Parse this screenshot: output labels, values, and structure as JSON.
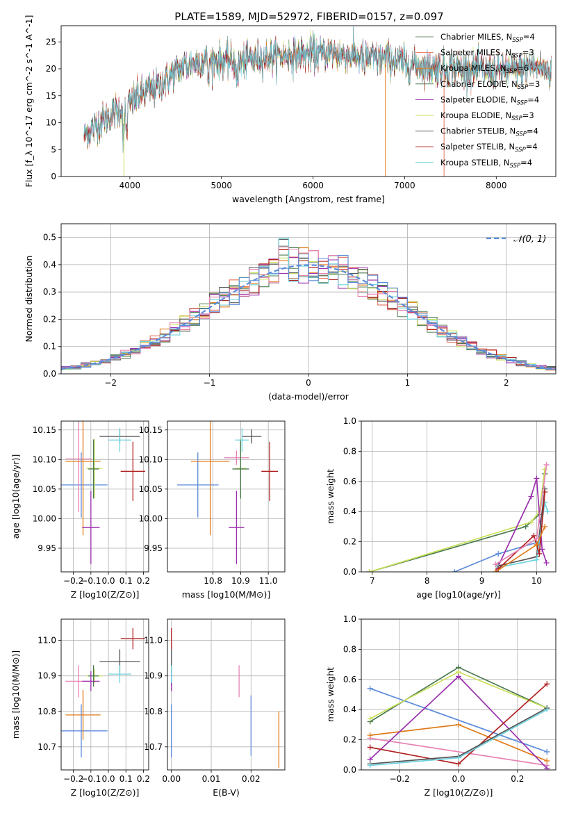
{
  "figure": {
    "title": "PLATE=1589, MJD=52972, FIBERID=0157, z=0.097"
  },
  "series_colors": [
    "#1f77b4"
  ],
  "chart_data": [
    {
      "id": "spectrum",
      "type": "line",
      "title": "PLATE=1589, MJD=52972, FIBERID=0157, z=0.097",
      "xlabel": "wavelength [Angstrom, rest frame]",
      "ylabel": "Flux [f_λ 10^-17 erg cm^-2 s^-1 A^-1]",
      "xlim": [
        3250,
        8650
      ],
      "ylim": [
        0,
        28
      ],
      "xticks": [
        4000,
        5000,
        6000,
        7000,
        8000
      ],
      "yticks": [
        0,
        5,
        10,
        15,
        20,
        25
      ],
      "grid": false,
      "legend_position": "top-right",
      "continuum_points": [
        [
          3500,
          7.5
        ],
        [
          3600,
          9.0
        ],
        [
          3700,
          10.5
        ],
        [
          3800,
          11.5
        ],
        [
          3900,
          12.5
        ],
        [
          4000,
          13.5
        ],
        [
          4100,
          15.0
        ],
        [
          4200,
          16.0
        ],
        [
          4300,
          16.5
        ],
        [
          4400,
          18.0
        ],
        [
          4500,
          19.5
        ],
        [
          4600,
          20.5
        ],
        [
          4700,
          21.0
        ],
        [
          4800,
          21.5
        ],
        [
          4900,
          21.5
        ],
        [
          5000,
          21.5
        ],
        [
          5100,
          21.5
        ],
        [
          5200,
          21.0
        ],
        [
          5300,
          21.8
        ],
        [
          5400,
          22.0
        ],
        [
          5600,
          22.3
        ],
        [
          5800,
          22.5
        ],
        [
          6000,
          22.8
        ],
        [
          6200,
          22.8
        ],
        [
          6400,
          22.5
        ],
        [
          6600,
          22.0
        ],
        [
          6800,
          21.8
        ],
        [
          7000,
          21.0
        ],
        [
          7200,
          20.5
        ],
        [
          7400,
          20.0
        ],
        [
          7600,
          20.2
        ],
        [
          7800,
          19.8
        ],
        [
          8000,
          19.5
        ],
        [
          8200,
          19.8
        ],
        [
          8400,
          20.5
        ],
        [
          8600,
          19.5
        ]
      ],
      "series": [
        {
          "name": "Chabrier MILES, N_SSP=4",
          "color": "#6b8e6b"
        },
        {
          "name": "Salpeter MILES, N_SSP=3",
          "color": "#e8735a"
        },
        {
          "name": "Kroupa MILES, N_SSP=6",
          "color": "#e07b1a"
        },
        {
          "name": "Chabrier ELODIE, N_SSP=3",
          "color": "#4a7a50"
        },
        {
          "name": "Salpeter ELODIE, N_SSP=4",
          "color": "#9b2fae"
        },
        {
          "name": "Kroupa ELODIE, N_SSP=3",
          "color": "#c9e05a"
        },
        {
          "name": "Chabrier STELIB, N_SSP=4",
          "color": "#555555"
        },
        {
          "name": "Salpeter STELIB, N_SSP=4",
          "color": "#b22222"
        },
        {
          "name": "Kroupa STELIB, N_SSP=4",
          "color": "#6fd3e0"
        }
      ],
      "legend_labels": [
        {
          "pre": "Chabrier MILES, N",
          "sub": "SSP",
          "post": "=4"
        },
        {
          "pre": "Salpeter MILES, N",
          "sub": "SSP",
          "post": "=3"
        },
        {
          "pre": "Kroupa MILES, N",
          "sub": "SSP",
          "post": "=6"
        },
        {
          "pre": "Chabrier ELODIE, N",
          "sub": "SSP",
          "post": "=3"
        },
        {
          "pre": "Salpeter ELODIE, N",
          "sub": "SSP",
          "post": "=4"
        },
        {
          "pre": "Kroupa ELODIE, N",
          "sub": "SSP",
          "post": "=3"
        },
        {
          "pre": "Chabrier STELIB, N",
          "sub": "SSP",
          "post": "=4"
        },
        {
          "pre": "Salpeter STELIB, N",
          "sub": "SSP",
          "post": "=4"
        },
        {
          "pre": "Kroupa STELIB, N",
          "sub": "SSP",
          "post": "=4"
        }
      ]
    },
    {
      "id": "residuals",
      "type": "histogram",
      "xlabel": "(data-model)/error",
      "ylabel": "Normed distribution",
      "xlim": [
        -2.5,
        2.5
      ],
      "ylim": [
        0,
        0.55
      ],
      "xticks": [
        -2,
        -1,
        0,
        1,
        2
      ],
      "yticks": [
        0.0,
        0.1,
        0.2,
        0.3,
        0.4,
        0.5
      ],
      "grid": true,
      "legend_position": "top-right",
      "legend": [
        {
          "label": "𝒩(0, 1)",
          "style": "dashed",
          "color": "#5b8bd9"
        }
      ],
      "bin_width": 0.1,
      "series_colors": [
        "#6b8e6b",
        "#e8735a",
        "#e07b1a",
        "#4a7a50",
        "#9b2fae",
        "#c9e05a",
        "#555555",
        "#b22222",
        "#6fd3e0",
        "#e683b5",
        "#5b8bd9"
      ]
    },
    {
      "id": "age_vs_Z",
      "type": "scatter",
      "xlabel": "Z [log10(Z/Z⊙)]",
      "ylabel": "age [log10(age/yr)]",
      "xlim": [
        -0.27,
        0.23
      ],
      "ylim": [
        9.91,
        10.165
      ],
      "xticks": [
        -0.2,
        -0.1,
        0.0,
        0.1,
        0.2
      ],
      "yticks": [
        9.95,
        10.0,
        10.05,
        10.1,
        10.15
      ],
      "grid": true,
      "points": [
        {
          "x": -0.155,
          "y": 10.057,
          "xerr": 0.15,
          "yerr": 0.055,
          "color": "#5b8bd9"
        },
        {
          "x": -0.17,
          "y": 10.101,
          "xerr": 0.075,
          "yerr": 0.09,
          "color": "#e683b5"
        },
        {
          "x": -0.145,
          "y": 10.097,
          "xerr": 0.1,
          "yerr": 0.125,
          "color": "#e07b1a"
        },
        {
          "x": -0.08,
          "y": 10.085,
          "xerr": 0.045,
          "yerr": 0.05,
          "color": "#c9e05a"
        },
        {
          "x": -0.085,
          "y": 10.084,
          "xerr": 0.03,
          "yerr": 0.05,
          "color": "#4a7a50"
        },
        {
          "x": -0.1,
          "y": 9.985,
          "xerr": 0.05,
          "yerr": 0.062,
          "color": "#9b2fae"
        },
        {
          "x": 0.065,
          "y": 10.139,
          "xerr": 0.115,
          "yerr": 0.012,
          "color": "#555555"
        },
        {
          "x": 0.065,
          "y": 10.133,
          "xerr": 0.065,
          "yerr": 0.02,
          "color": "#6fd3e0"
        },
        {
          "x": 0.14,
          "y": 10.08,
          "xerr": 0.07,
          "yerr": 0.05,
          "color": "#b22222"
        }
      ]
    },
    {
      "id": "age_vs_mass",
      "type": "scatter",
      "xlabel": "mass [log10(M/M⊙)]",
      "ylabel": "",
      "xlim": [
        10.635,
        11.06
      ],
      "ylim": [
        9.91,
        10.165
      ],
      "xticks": [
        10.8,
        10.9,
        11.0
      ],
      "yticks": [
        9.95,
        10.0,
        10.05,
        10.1,
        10.15
      ],
      "grid": true,
      "points": [
        {
          "x": 10.745,
          "y": 10.057,
          "xerr": 0.075,
          "yerr": 0.055,
          "color": "#5b8bd9"
        },
        {
          "x": 10.885,
          "y": 10.103,
          "xerr": 0.045,
          "yerr": 0.012,
          "color": "#e683b5"
        },
        {
          "x": 10.79,
          "y": 10.097,
          "xerr": 0.07,
          "yerr": 0.125,
          "color": "#e07b1a"
        },
        {
          "x": 10.9,
          "y": 10.085,
          "xerr": 0.02,
          "yerr": 0.05,
          "color": "#c9e05a"
        },
        {
          "x": 10.9,
          "y": 10.084,
          "xerr": 0.03,
          "yerr": 0.05,
          "color": "#4a7a50"
        },
        {
          "x": 10.885,
          "y": 9.985,
          "xerr": 0.028,
          "yerr": 0.062,
          "color": "#9b2fae"
        },
        {
          "x": 10.94,
          "y": 10.139,
          "xerr": 0.035,
          "yerr": 0.012,
          "color": "#555555"
        },
        {
          "x": 10.905,
          "y": 10.133,
          "xerr": 0.025,
          "yerr": 0.02,
          "color": "#6fd3e0"
        },
        {
          "x": 11.005,
          "y": 10.08,
          "xerr": 0.03,
          "yerr": 0.05,
          "color": "#b22222"
        }
      ]
    },
    {
      "id": "mass_weight_vs_age",
      "type": "line",
      "xlabel": "age [log10(age/yr)]",
      "ylabel": "mass weight",
      "xlim": [
        6.8,
        10.35
      ],
      "ylim": [
        0,
        1.0
      ],
      "xticks": [
        7,
        8,
        9,
        10
      ],
      "yticks": [
        0.0,
        0.2,
        0.4,
        0.6,
        0.8,
        1.0
      ],
      "grid": true,
      "series": [
        {
          "color": "#4a7a50",
          "points": [
            [
              6.95,
              0.0
            ],
            [
              9.8,
              0.3
            ],
            [
              10.05,
              0.38
            ],
            [
              10.15,
              0.65
            ]
          ]
        },
        {
          "color": "#c9e05a",
          "points": [
            [
              6.95,
              0.0
            ],
            [
              9.9,
              0.33
            ],
            [
              10.05,
              0.4
            ],
            [
              10.15,
              0.68
            ]
          ]
        },
        {
          "color": "#5b8bd9",
          "points": [
            [
              8.5,
              0.0
            ],
            [
              9.3,
              0.12
            ],
            [
              10.05,
              0.2
            ]
          ]
        },
        {
          "color": "#9b2fae",
          "points": [
            [
              9.25,
              0.0
            ],
            [
              9.9,
              0.5
            ],
            [
              10.0,
              0.62
            ],
            [
              10.1,
              0.15
            ],
            [
              10.18,
              0.06
            ]
          ]
        },
        {
          "color": "#555555",
          "points": [
            [
              9.3,
              0.04
            ],
            [
              10.0,
              0.1
            ],
            [
              10.15,
              0.55
            ]
          ]
        },
        {
          "color": "#6fd3e0",
          "points": [
            [
              9.3,
              0.03
            ],
            [
              10.0,
              0.08
            ],
            [
              10.15,
              0.46
            ],
            [
              10.2,
              0.4
            ]
          ]
        },
        {
          "color": "#b22222",
          "points": [
            [
              9.3,
              0.02
            ],
            [
              9.95,
              0.24
            ],
            [
              10.05,
              0.12
            ],
            [
              10.15,
              0.53
            ]
          ]
        },
        {
          "color": "#e07b1a",
          "points": [
            [
              9.25,
              0.0
            ],
            [
              10.0,
              0.18
            ],
            [
              10.15,
              0.3
            ]
          ]
        },
        {
          "color": "#e683b5",
          "points": [
            [
              9.25,
              0.05
            ],
            [
              10.0,
              0.22
            ],
            [
              10.18,
              0.71
            ]
          ]
        }
      ]
    },
    {
      "id": "mass_vs_Z",
      "type": "scatter",
      "xlabel": "Z [log10(Z/Z⊙)]",
      "ylabel": "mass [log10(M/M⊙)]",
      "xlim": [
        -0.27,
        0.23
      ],
      "ylim": [
        10.635,
        11.06
      ],
      "xticks": [
        -0.2,
        -0.1,
        0.0,
        0.1,
        0.2
      ],
      "yticks": [
        10.7,
        10.8,
        10.9,
        11.0
      ],
      "grid": true,
      "points": [
        {
          "x": -0.155,
          "y": 10.745,
          "xerr": 0.15,
          "yerr": 0.075,
          "color": "#5b8bd9"
        },
        {
          "x": -0.17,
          "y": 10.885,
          "xerr": 0.075,
          "yerr": 0.045,
          "color": "#e683b5"
        },
        {
          "x": -0.145,
          "y": 10.79,
          "xerr": 0.1,
          "yerr": 0.07,
          "color": "#e07b1a"
        },
        {
          "x": -0.08,
          "y": 10.9,
          "xerr": 0.045,
          "yerr": 0.02,
          "color": "#c9e05a"
        },
        {
          "x": -0.085,
          "y": 10.9,
          "xerr": 0.03,
          "yerr": 0.03,
          "color": "#4a7a50"
        },
        {
          "x": -0.1,
          "y": 10.885,
          "xerr": 0.05,
          "yerr": 0.028,
          "color": "#9b2fae"
        },
        {
          "x": 0.065,
          "y": 10.94,
          "xerr": 0.115,
          "yerr": 0.035,
          "color": "#555555"
        },
        {
          "x": 0.065,
          "y": 10.905,
          "xerr": 0.065,
          "yerr": 0.025,
          "color": "#6fd3e0"
        },
        {
          "x": 0.14,
          "y": 11.005,
          "xerr": 0.07,
          "yerr": 0.03,
          "color": "#b22222"
        }
      ]
    },
    {
      "id": "mass_vs_ebv",
      "type": "scatter",
      "xlabel": "E(B-V)",
      "ylabel": "",
      "xlim": [
        -0.001,
        0.0285
      ],
      "ylim": [
        10.635,
        11.06
      ],
      "xticks": [
        0.0,
        0.01,
        0.02
      ],
      "yticks": [
        10.7,
        10.8,
        10.9,
        11.0
      ],
      "grid": true,
      "points": [
        {
          "x": 0.0,
          "y": 10.745,
          "xerr": 0,
          "yerr": 0.075,
          "color": "#5b8bd9"
        },
        {
          "x": 0.017,
          "y": 10.885,
          "xerr": 0,
          "yerr": 0.045,
          "color": "#e683b5"
        },
        {
          "x": 0.027,
          "y": 10.72,
          "xerr": 0,
          "yerr": 0.08,
          "color": "#e07b1a"
        },
        {
          "x": 0.0,
          "y": 10.9,
          "xerr": 0,
          "yerr": 0.02,
          "color": "#c9e05a"
        },
        {
          "x": 0.0,
          "y": 10.9,
          "xerr": 0,
          "yerr": 0.03,
          "color": "#4a7a50"
        },
        {
          "x": 0.0,
          "y": 10.885,
          "xerr": 0,
          "yerr": 0.028,
          "color": "#9b2fae"
        },
        {
          "x": 0.0,
          "y": 10.94,
          "xerr": 0,
          "yerr": 0.035,
          "color": "#555555"
        },
        {
          "x": 0.0,
          "y": 10.905,
          "xerr": 0,
          "yerr": 0.025,
          "color": "#6fd3e0"
        },
        {
          "x": 0.0,
          "y": 11.005,
          "xerr": 0,
          "yerr": 0.03,
          "color": "#b22222"
        },
        {
          "x": 0.02,
          "y": 10.76,
          "xerr": 0,
          "yerr": 0.085,
          "color": "#5b8bd9"
        }
      ]
    },
    {
      "id": "mass_weight_vs_Z",
      "type": "line",
      "xlabel": "Z [log10(Z/Z⊙)]",
      "ylabel": "mass weight",
      "xlim": [
        -0.33,
        0.33
      ],
      "ylim": [
        0,
        1.0
      ],
      "xticks": [
        -0.2,
        0.0,
        0.2
      ],
      "yticks": [
        0.0,
        0.2,
        0.4,
        0.6,
        0.8,
        1.0
      ],
      "grid": true,
      "series": [
        {
          "color": "#5b8bd9",
          "points": [
            [
              -0.3,
              0.54
            ],
            [
              0.3,
              0.12
            ]
          ]
        },
        {
          "color": "#e683b5",
          "points": [
            [
              -0.3,
              0.21
            ],
            [
              0.3,
              0.03
            ]
          ]
        },
        {
          "color": "#e07b1a",
          "points": [
            [
              -0.3,
              0.23
            ],
            [
              0.0,
              0.3
            ],
            [
              0.3,
              0.06
            ]
          ]
        },
        {
          "color": "#4a7a50",
          "points": [
            [
              -0.3,
              0.32
            ],
            [
              0.0,
              0.68
            ],
            [
              0.3,
              0.41
            ]
          ]
        },
        {
          "color": "#c9e05a",
          "points": [
            [
              -0.3,
              0.34
            ],
            [
              0.0,
              0.65
            ],
            [
              0.3,
              0.41
            ]
          ]
        },
        {
          "color": "#9b2fae",
          "points": [
            [
              -0.3,
              0.07
            ],
            [
              0.0,
              0.62
            ],
            [
              0.3,
              0.01
            ]
          ]
        },
        {
          "color": "#b22222",
          "points": [
            [
              -0.3,
              0.15
            ],
            [
              0.0,
              0.04
            ],
            [
              0.3,
              0.57
            ]
          ]
        },
        {
          "color": "#555555",
          "points": [
            [
              -0.3,
              0.04
            ],
            [
              0.0,
              0.09
            ],
            [
              0.3,
              0.41
            ]
          ]
        },
        {
          "color": "#6fd3e0",
          "points": [
            [
              -0.3,
              0.03
            ],
            [
              0.0,
              0.08
            ],
            [
              0.3,
              0.4
            ]
          ]
        }
      ]
    }
  ]
}
